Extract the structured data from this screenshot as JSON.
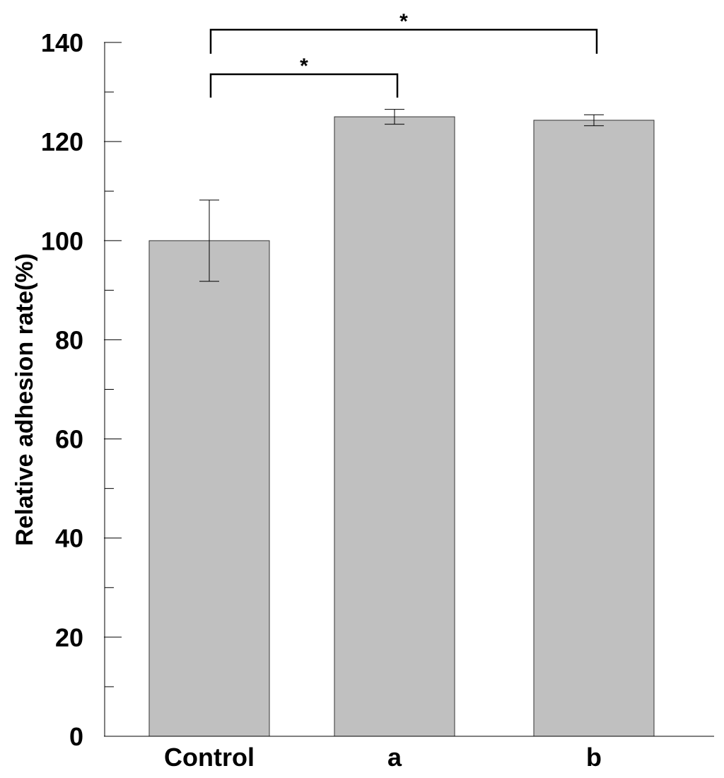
{
  "chart_data": {
    "type": "bar",
    "categories": [
      "Control",
      "a",
      "b"
    ],
    "values": [
      100,
      125,
      124.3
    ],
    "errors": [
      8.2,
      1.5,
      1.1
    ],
    "xlabel": "",
    "ylabel": "Relative adhesion rate(%)",
    "ylim": [
      0,
      140
    ],
    "y_major_ticks": [
      0,
      20,
      40,
      60,
      80,
      100,
      120,
      140
    ],
    "y_minor_ticks": [
      10,
      30,
      50,
      70,
      90,
      110,
      130
    ],
    "bar_color": "#c0c0c0",
    "grid": false,
    "significance": [
      {
        "from": "Control",
        "to": "a",
        "label": "*"
      },
      {
        "from": "Control",
        "to": "b",
        "label": "*"
      }
    ]
  }
}
